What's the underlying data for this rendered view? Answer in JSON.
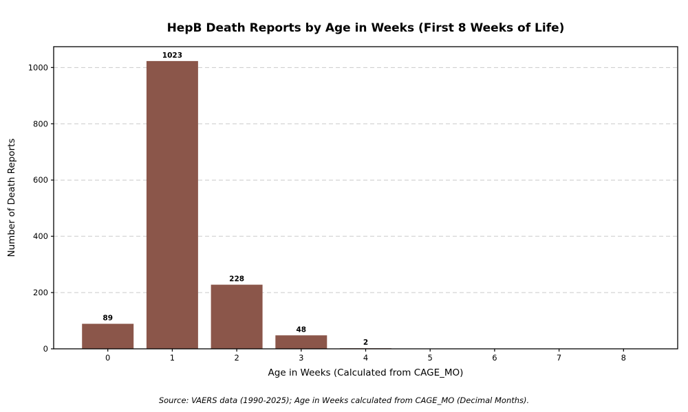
{
  "chart_data": {
    "type": "bar",
    "title": "HepB Death Reports by Age in Weeks (First 8 Weeks of Life)",
    "xlabel": "Age in Weeks (Calculated from CAGE_MO)",
    "ylabel": "Number of Death Reports",
    "source_note": "Source: VAERS data (1990-2025); Age in Weeks calculated from CAGE_MO (Decimal Months).",
    "categories": [
      "0",
      "1",
      "2",
      "3",
      "4",
      "5",
      "6",
      "7",
      "8"
    ],
    "values": [
      89,
      1023,
      228,
      48,
      2,
      0,
      0,
      0,
      0
    ],
    "bar_value_labels": [
      "89",
      "1023",
      "228",
      "48",
      "2"
    ],
    "yticks": [
      0,
      200,
      400,
      600,
      800,
      1000
    ],
    "ylim": [
      0,
      1074
    ],
    "xlim": [
      -0.84,
      8.84
    ],
    "bar_width_units": 0.8,
    "grid": "horizontal-dashed",
    "legend": "none",
    "colors": {
      "bar": "#8B564A",
      "grid": "#c9c9c9",
      "spine": "#000000",
      "text": "#000000",
      "background": "#ffffff"
    }
  }
}
